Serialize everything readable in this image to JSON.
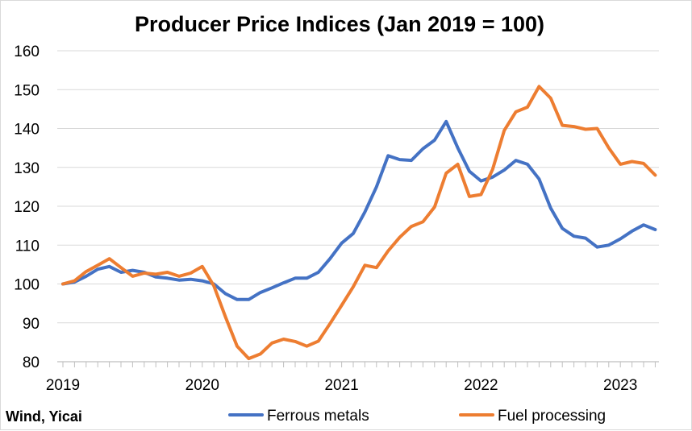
{
  "chart_data": {
    "type": "line",
    "title": "Producer Price Indices (Jan 2019 = 100)",
    "source": "Wind, Yicai",
    "xlabel": "",
    "ylabel": "",
    "ylim": [
      80,
      160
    ],
    "yticks": [
      80,
      90,
      100,
      110,
      120,
      130,
      140,
      150,
      160
    ],
    "xtick_labels": [
      "2019",
      "2020",
      "2021",
      "2022",
      "2023"
    ],
    "x_start": "2019-01",
    "x_end": "2023-04",
    "grid": "horizontal",
    "legend_position": "bottom",
    "x": [
      "2019-01",
      "2019-02",
      "2019-03",
      "2019-04",
      "2019-05",
      "2019-06",
      "2019-07",
      "2019-08",
      "2019-09",
      "2019-10",
      "2019-11",
      "2019-12",
      "2020-01",
      "2020-02",
      "2020-03",
      "2020-04",
      "2020-05",
      "2020-06",
      "2020-07",
      "2020-08",
      "2020-09",
      "2020-10",
      "2020-11",
      "2020-12",
      "2021-01",
      "2021-02",
      "2021-03",
      "2021-04",
      "2021-05",
      "2021-06",
      "2021-07",
      "2021-08",
      "2021-09",
      "2021-10",
      "2021-11",
      "2021-12",
      "2022-01",
      "2022-02",
      "2022-03",
      "2022-04",
      "2022-05",
      "2022-06",
      "2022-07",
      "2022-08",
      "2022-09",
      "2022-10",
      "2022-11",
      "2022-12",
      "2023-01",
      "2023-02",
      "2023-03",
      "2023-04"
    ],
    "series": [
      {
        "name": "Ferrous metals",
        "color": "#4472c4",
        "values": [
          100,
          100.5,
          102,
          103.8,
          104.5,
          103,
          103.5,
          103,
          101.8,
          101.5,
          101,
          101.2,
          100.8,
          100,
          97.5,
          96,
          96,
          97.8,
          99,
          100.3,
          101.5,
          101.5,
          103,
          106.5,
          110.5,
          113,
          118.5,
          125,
          133,
          132,
          131.8,
          134.8,
          137,
          141.8,
          135,
          129,
          126.5,
          127.5,
          129.3,
          131.8,
          130.8,
          127,
          119.5,
          114.3,
          112.3,
          111.8,
          109.5,
          110,
          111.6,
          113.6,
          115.2,
          114
        ]
      },
      {
        "name": "Fuel processing",
        "color": "#ed7d31",
        "values": [
          100,
          100.8,
          103.2,
          104.8,
          106.5,
          104.2,
          102,
          102.8,
          102.5,
          103,
          102,
          102.8,
          104.5,
          99.5,
          91.5,
          84,
          80.8,
          82,
          84.8,
          85.8,
          85.2,
          84,
          85.3,
          89.8,
          94.5,
          99.3,
          104.8,
          104.2,
          108.5,
          112,
          114.8,
          116,
          119.8,
          128.5,
          130.8,
          122.5,
          123,
          129.5,
          139.5,
          144.3,
          145.5,
          150.8,
          147.8,
          140.8,
          140.5,
          139.8,
          140,
          135,
          130.8,
          131.5,
          131,
          128
        ]
      }
    ]
  }
}
